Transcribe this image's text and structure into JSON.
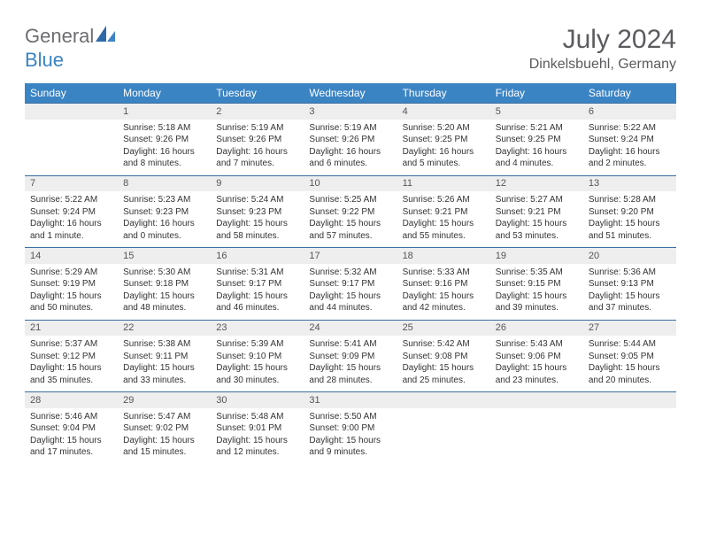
{
  "brand": {
    "text1": "General",
    "text2": "Blue"
  },
  "title": "July 2024",
  "subtitle": "Dinkelsbuehl, Germany",
  "colors": {
    "header_bg": "#3b84c4",
    "header_text": "#ffffff",
    "daynum_bg": "#eeeeee",
    "row_divider": "#3b6fa0",
    "title_color": "#5b5b5f",
    "logo_gray": "#6d6e71",
    "logo_blue": "#3b84c4"
  },
  "weekdays": [
    "Sunday",
    "Monday",
    "Tuesday",
    "Wednesday",
    "Thursday",
    "Friday",
    "Saturday"
  ],
  "weeks": [
    {
      "nums": [
        "",
        "1",
        "2",
        "3",
        "4",
        "5",
        "6"
      ],
      "cells": [
        "",
        "Sunrise: 5:18 AM\nSunset: 9:26 PM\nDaylight: 16 hours and 8 minutes.",
        "Sunrise: 5:19 AM\nSunset: 9:26 PM\nDaylight: 16 hours and 7 minutes.",
        "Sunrise: 5:19 AM\nSunset: 9:26 PM\nDaylight: 16 hours and 6 minutes.",
        "Sunrise: 5:20 AM\nSunset: 9:25 PM\nDaylight: 16 hours and 5 minutes.",
        "Sunrise: 5:21 AM\nSunset: 9:25 PM\nDaylight: 16 hours and 4 minutes.",
        "Sunrise: 5:22 AM\nSunset: 9:24 PM\nDaylight: 16 hours and 2 minutes."
      ]
    },
    {
      "nums": [
        "7",
        "8",
        "9",
        "10",
        "11",
        "12",
        "13"
      ],
      "cells": [
        "Sunrise: 5:22 AM\nSunset: 9:24 PM\nDaylight: 16 hours and 1 minute.",
        "Sunrise: 5:23 AM\nSunset: 9:23 PM\nDaylight: 16 hours and 0 minutes.",
        "Sunrise: 5:24 AM\nSunset: 9:23 PM\nDaylight: 15 hours and 58 minutes.",
        "Sunrise: 5:25 AM\nSunset: 9:22 PM\nDaylight: 15 hours and 57 minutes.",
        "Sunrise: 5:26 AM\nSunset: 9:21 PM\nDaylight: 15 hours and 55 minutes.",
        "Sunrise: 5:27 AM\nSunset: 9:21 PM\nDaylight: 15 hours and 53 minutes.",
        "Sunrise: 5:28 AM\nSunset: 9:20 PM\nDaylight: 15 hours and 51 minutes."
      ]
    },
    {
      "nums": [
        "14",
        "15",
        "16",
        "17",
        "18",
        "19",
        "20"
      ],
      "cells": [
        "Sunrise: 5:29 AM\nSunset: 9:19 PM\nDaylight: 15 hours and 50 minutes.",
        "Sunrise: 5:30 AM\nSunset: 9:18 PM\nDaylight: 15 hours and 48 minutes.",
        "Sunrise: 5:31 AM\nSunset: 9:17 PM\nDaylight: 15 hours and 46 minutes.",
        "Sunrise: 5:32 AM\nSunset: 9:17 PM\nDaylight: 15 hours and 44 minutes.",
        "Sunrise: 5:33 AM\nSunset: 9:16 PM\nDaylight: 15 hours and 42 minutes.",
        "Sunrise: 5:35 AM\nSunset: 9:15 PM\nDaylight: 15 hours and 39 minutes.",
        "Sunrise: 5:36 AM\nSunset: 9:13 PM\nDaylight: 15 hours and 37 minutes."
      ]
    },
    {
      "nums": [
        "21",
        "22",
        "23",
        "24",
        "25",
        "26",
        "27"
      ],
      "cells": [
        "Sunrise: 5:37 AM\nSunset: 9:12 PM\nDaylight: 15 hours and 35 minutes.",
        "Sunrise: 5:38 AM\nSunset: 9:11 PM\nDaylight: 15 hours and 33 minutes.",
        "Sunrise: 5:39 AM\nSunset: 9:10 PM\nDaylight: 15 hours and 30 minutes.",
        "Sunrise: 5:41 AM\nSunset: 9:09 PM\nDaylight: 15 hours and 28 minutes.",
        "Sunrise: 5:42 AM\nSunset: 9:08 PM\nDaylight: 15 hours and 25 minutes.",
        "Sunrise: 5:43 AM\nSunset: 9:06 PM\nDaylight: 15 hours and 23 minutes.",
        "Sunrise: 5:44 AM\nSunset: 9:05 PM\nDaylight: 15 hours and 20 minutes."
      ]
    },
    {
      "nums": [
        "28",
        "29",
        "30",
        "31",
        "",
        "",
        ""
      ],
      "cells": [
        "Sunrise: 5:46 AM\nSunset: 9:04 PM\nDaylight: 15 hours and 17 minutes.",
        "Sunrise: 5:47 AM\nSunset: 9:02 PM\nDaylight: 15 hours and 15 minutes.",
        "Sunrise: 5:48 AM\nSunset: 9:01 PM\nDaylight: 15 hours and 12 minutes.",
        "Sunrise: 5:50 AM\nSunset: 9:00 PM\nDaylight: 15 hours and 9 minutes.",
        "",
        "",
        ""
      ]
    }
  ]
}
